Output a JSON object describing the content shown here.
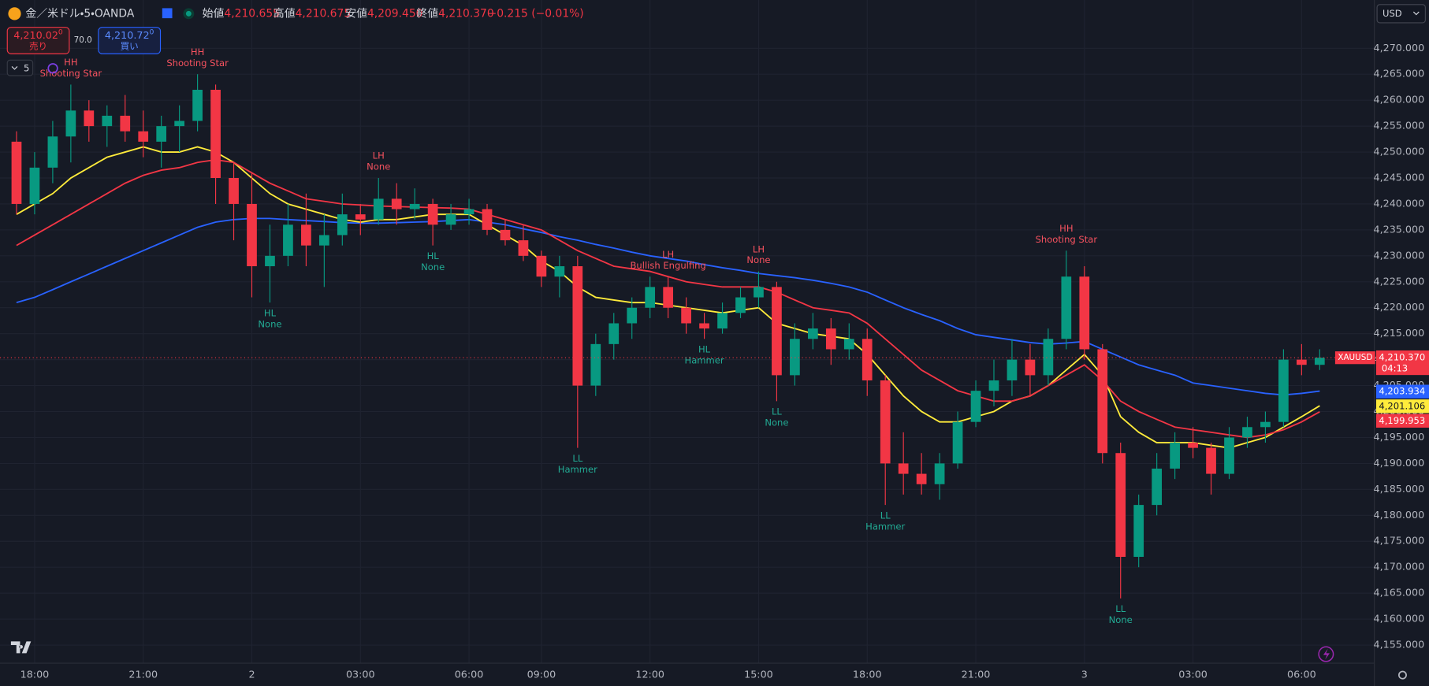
{
  "header": {
    "symbol": "金／米ドル・5・OANDA",
    "open_label": "始値",
    "open": "4,210.655",
    "high_label": "高値",
    "high": "4,210.675",
    "low_label": "安値",
    "low": "4,209.450",
    "close_label": "終値",
    "close": "4,210.370",
    "change": "−0.215 (−0.01%)"
  },
  "trade": {
    "sell_price": "4,210.02",
    "sell_sup": "0",
    "sell_label": "売り",
    "spread": "70.0",
    "buy_price": "4,210.72",
    "buy_sup": "0",
    "buy_label": "買い"
  },
  "interval": "5",
  "currency": "USD",
  "chart_data": {
    "type": "candlestick",
    "categories": [
      null,
      "18:00",
      null,
      null,
      null,
      null,
      null,
      "21:00",
      null,
      null,
      null,
      null,
      null,
      "2",
      null,
      null,
      null,
      null,
      null,
      "03:00",
      null,
      null,
      null,
      null,
      null,
      "06:00",
      null,
      null,
      null,
      "09:00",
      null,
      null,
      null,
      null,
      null,
      "12:00",
      null,
      null,
      null,
      null,
      null,
      "15:00",
      null,
      null,
      null,
      null,
      null,
      "18:00",
      null,
      null,
      null,
      null,
      null,
      "21:00",
      null,
      null,
      null,
      null,
      null,
      "3",
      null,
      null,
      null,
      null,
      null,
      "03:00",
      null,
      null,
      null,
      null,
      null,
      "06:00",
      null
    ],
    "open": [
      4252,
      4240,
      4247,
      4253,
      4258,
      4255,
      4257,
      4254,
      4252,
      4255,
      4256,
      4262,
      4245,
      4240,
      4228,
      4230,
      4236,
      4232,
      4234,
      4238,
      4237,
      4241,
      4239,
      4240,
      4236,
      4238,
      4239,
      4235,
      4233,
      4230,
      4226,
      4228,
      4205,
      4213,
      4217,
      4220,
      4224,
      4220,
      4217,
      4216,
      4219,
      4222,
      4224,
      4207,
      4214,
      4216,
      4212,
      4214,
      4206,
      4190,
      4188,
      4186,
      4190,
      4198,
      4204,
      4206,
      4210,
      4207,
      4214,
      4226,
      4212,
      4192,
      4172,
      4182,
      4189,
      4194,
      4193,
      4188,
      4195,
      4197,
      4198,
      4210,
      4209
    ],
    "high": [
      4254,
      4250,
      4256,
      4263,
      4260,
      4259,
      4261,
      4258,
      4257,
      4259,
      4265,
      4263,
      4248,
      4246,
      4236,
      4240,
      4242,
      4238,
      4242,
      4240,
      4245,
      4244,
      4243,
      4241,
      4240,
      4241,
      4240,
      4237,
      4236,
      4231,
      4230,
      4230,
      4215,
      4219,
      4222,
      4226,
      4226,
      4222,
      4219,
      4221,
      4224,
      4227,
      4225,
      4217,
      4219,
      4218,
      4217,
      4216,
      4207,
      4196,
      4192,
      4192,
      4200,
      4206,
      4210,
      4214,
      4213,
      4216,
      4231,
      4228,
      4213,
      4194,
      4184,
      4192,
      4196,
      4197,
      4194,
      4197,
      4199,
      4200,
      4212,
      4213,
      4212
    ],
    "low": [
      4238,
      4238,
      4244,
      4248,
      4252,
      4251,
      4252,
      4249,
      4247,
      4250,
      4254,
      4240,
      4233,
      4222,
      4221,
      4228,
      4228,
      4224,
      4232,
      4234,
      4236,
      4236,
      4237,
      4232,
      4235,
      4236,
      4234,
      4232,
      4229,
      4224,
      4222,
      4193,
      4203,
      4210,
      4214,
      4218,
      4218,
      4215,
      4214,
      4215,
      4218,
      4220,
      4202,
      4205,
      4212,
      4209,
      4210,
      4203,
      4182,
      4184,
      4184,
      4183,
      4189,
      4197,
      4201,
      4203,
      4203,
      4205,
      4212,
      4210,
      4190,
      4164,
      4170,
      4180,
      4187,
      4191,
      4184,
      4187,
      4193,
      4194,
      4197,
      4207,
      4208
    ],
    "close": [
      4240,
      4247,
      4253,
      4258,
      4255,
      4257,
      4254,
      4252,
      4255,
      4256,
      4262,
      4245,
      4240,
      4228,
      4230,
      4236,
      4232,
      4234,
      4238,
      4237,
      4241,
      4239,
      4240,
      4236,
      4238,
      4239,
      4235,
      4233,
      4230,
      4226,
      4228,
      4205,
      4213,
      4217,
      4220,
      4224,
      4220,
      4217,
      4216,
      4219,
      4222,
      4224,
      4207,
      4214,
      4216,
      4212,
      4214,
      4206,
      4190,
      4188,
      4186,
      4190,
      4198,
      4204,
      4206,
      4210,
      4207,
      4214,
      4226,
      4212,
      4192,
      4172,
      4182,
      4189,
      4194,
      4193,
      4188,
      4195,
      4197,
      4198,
      4210,
      4209,
      4210.37
    ],
    "up_color": "#089981",
    "down_color": "#f23645",
    "series": [
      {
        "color": "#2962ff",
        "last_label": "4,203.934",
        "values": [
          4221,
          4222,
          4223.5,
          4225,
          4226.5,
          4228,
          4229.5,
          4231,
          4232.5,
          4234,
          4235.5,
          4236.5,
          4237,
          4237.2,
          4237.2,
          4237,
          4236.8,
          4236.6,
          4236.4,
          4236.3,
          4236.3,
          4236.4,
          4236.5,
          4236.6,
          4236.8,
          4237,
          4236.5,
          4236,
          4235.2,
          4234.5,
          4233.7,
          4233,
          4232.2,
          4231.5,
          4230.7,
          4230,
          4229.5,
          4229,
          4228.3,
          4227.7,
          4227.2,
          4226.6,
          4226.2,
          4225.8,
          4225.3,
          4224.7,
          4224,
          4223,
          4221.5,
          4220,
          4218.7,
          4217.5,
          4216,
          4214.8,
          4214.3,
          4213.8,
          4213.3,
          4213,
          4213.2,
          4213.5,
          4212,
          4210.5,
          4209,
          4208,
          4207,
          4205.5,
          4205,
          4204.5,
          4204,
          4203.5,
          4203.2,
          4203.5,
          4203.934
        ]
      },
      {
        "color": "#ffeb3b",
        "last_label": "4,201.106",
        "values": [
          4238,
          4240,
          4242,
          4245,
          4247,
          4249,
          4250,
          4251,
          4250,
          4250,
          4251,
          4250,
          4248,
          4245,
          4242,
          4240,
          4239,
          4238,
          4237,
          4236.5,
          4237,
          4237,
          4237.5,
          4238,
          4238,
          4238,
          4236,
          4234,
          4232,
          4229,
          4227,
          4224,
          4222,
          4221.5,
          4221,
          4221,
          4220.5,
          4220,
          4219.5,
          4219,
          4219.5,
          4220,
          4217,
          4216,
          4215,
          4214.5,
          4214,
          4211,
          4207,
          4203,
          4200,
          4198,
          4198,
          4199,
          4200,
          4202,
          4203,
          4205,
          4208,
          4211,
          4207,
          4199,
          4196,
          4194,
          4194,
          4194,
          4193.5,
          4193,
          4194,
          4195,
          4197,
          4199,
          4201.106
        ]
      },
      {
        "color": "#f23645",
        "last_label": "4,199.953",
        "values": [
          4232,
          4234,
          4236,
          4238,
          4240,
          4242,
          4244,
          4245.5,
          4246.5,
          4247,
          4248,
          4248.5,
          4248,
          4246,
          4244,
          4242.5,
          4241,
          4240.5,
          4240,
          4239.8,
          4239.6,
          4239.5,
          4239.4,
          4239.3,
          4239.2,
          4239,
          4238,
          4237,
          4236,
          4235,
          4233,
          4231,
          4229.5,
          4228,
          4227.5,
          4227,
          4226,
          4225,
          4224.5,
          4224,
          4224,
          4224,
          4223,
          4221.5,
          4220,
          4219.5,
          4219,
          4217,
          4214,
          4211,
          4208,
          4206,
          4204,
          4203,
          4202,
          4202,
          4203,
          4205,
          4207,
          4209,
          4206,
          4202,
          4200,
          4198.5,
          4197,
          4196.5,
          4196,
          4195.5,
          4195,
          4195.5,
          4196.5,
          4198,
          4199.953
        ]
      }
    ],
    "pivots": [
      null,
      null,
      null,
      {
        "label": "HH",
        "pattern": "Shooting Star"
      },
      null,
      null,
      null,
      null,
      null,
      null,
      {
        "label": "HH",
        "pattern": "Shooting Star"
      },
      null,
      null,
      null,
      {
        "label": "HL",
        "pattern": "None"
      },
      null,
      null,
      null,
      null,
      null,
      {
        "label": "LH",
        "pattern": "None"
      },
      null,
      null,
      {
        "label": "HL",
        "pattern": "None"
      },
      null,
      null,
      null,
      null,
      null,
      null,
      null,
      {
        "label": "LL",
        "pattern": "Hammer"
      },
      null,
      null,
      null,
      null,
      {
        "label": "LH",
        "pattern": "Bullish Engulfing"
      },
      null,
      {
        "label": "HL",
        "pattern": "Hammer"
      },
      null,
      null,
      {
        "label": "LH",
        "pattern": "None"
      },
      {
        "label": "LL",
        "pattern": "None"
      },
      null,
      null,
      null,
      null,
      null,
      {
        "label": "LL",
        "pattern": "Hammer"
      },
      null,
      null,
      null,
      null,
      null,
      null,
      null,
      null,
      null,
      {
        "label": "HH",
        "pattern": "Shooting Star"
      },
      null,
      null,
      {
        "label": "LL",
        "pattern": "None"
      },
      null,
      null,
      null,
      null,
      null,
      null,
      null,
      null,
      null,
      null,
      null
    ],
    "ylim": [
      4151.5,
      4279.3
    ],
    "yticks": [
      {
        "value": 4155,
        "label": "4,155.000"
      },
      {
        "value": 4160,
        "label": "4,160.000"
      },
      {
        "value": 4165,
        "label": "4,165.000"
      },
      {
        "value": 4170,
        "label": "4,170.000"
      },
      {
        "value": 4175,
        "label": "4,175.000"
      },
      {
        "value": 4180,
        "label": "4,180.000"
      },
      {
        "value": 4185,
        "label": "4,185.000"
      },
      {
        "value": 4190,
        "label": "4,190.000"
      },
      {
        "value": 4195,
        "label": "4,195.000"
      },
      {
        "value": 4200,
        "label": "4,200.000"
      },
      {
        "value": 4205,
        "label": "4,205.000"
      },
      {
        "value": 4210,
        "label": "4,210.000"
      },
      {
        "value": 4215,
        "label": "4,215.000"
      },
      {
        "value": 4220,
        "label": "4,220.000"
      },
      {
        "value": 4225,
        "label": "4,225.000"
      },
      {
        "value": 4230,
        "label": "4,230.000"
      },
      {
        "value": 4235,
        "label": "4,235.000"
      },
      {
        "value": 4240,
        "label": "4,240.000"
      },
      {
        "value": 4245,
        "label": "4,245.000"
      },
      {
        "value": 4250,
        "label": "4,250.000"
      },
      {
        "value": 4255,
        "label": "4,255.000"
      },
      {
        "value": 4260,
        "label": "4,260.000"
      },
      {
        "value": 4265,
        "label": "4,265.000"
      },
      {
        "value": 4270,
        "label": "4,270.000"
      }
    ],
    "grid": true,
    "last_price_label": "4,210.370",
    "symbol_tag": "XAUUSD",
    "countdown": "04:13"
  }
}
